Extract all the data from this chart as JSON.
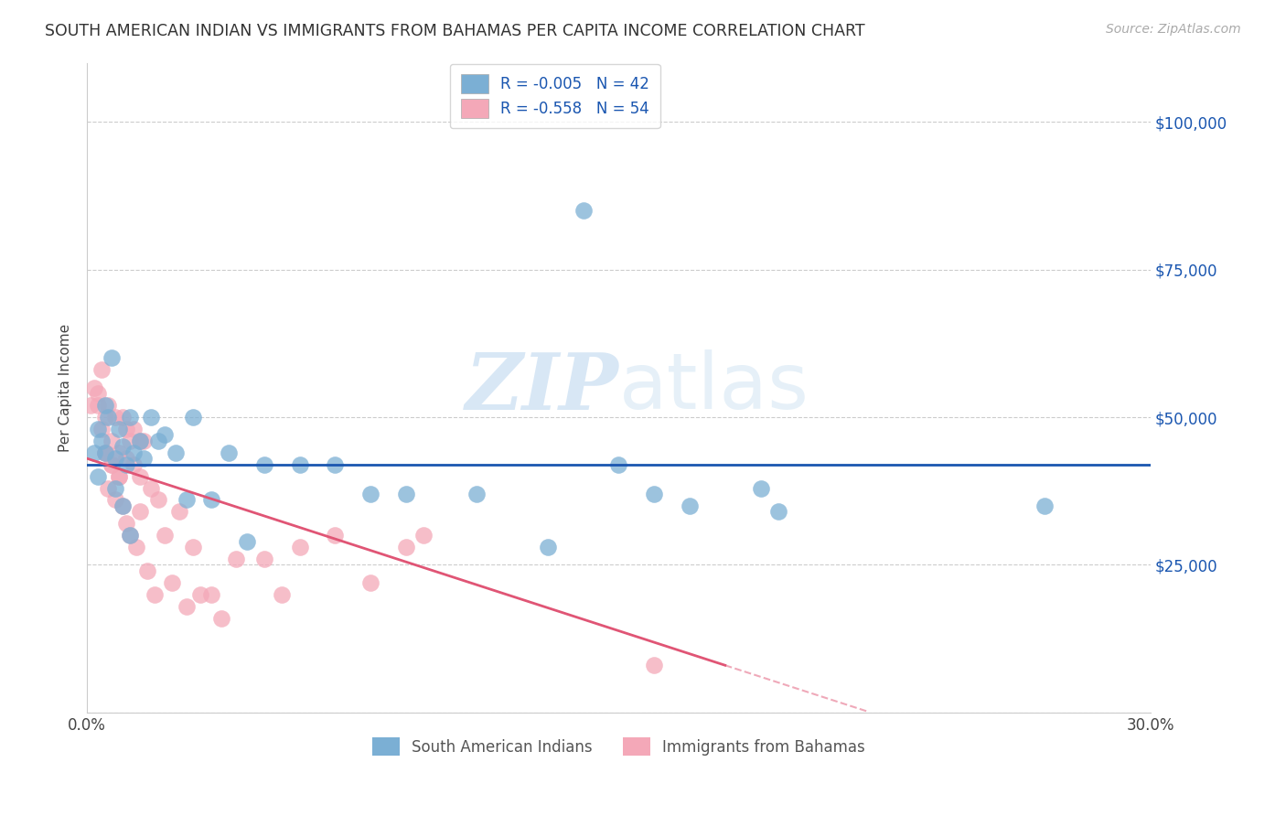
{
  "title": "SOUTH AMERICAN INDIAN VS IMMIGRANTS FROM BAHAMAS PER CAPITA INCOME CORRELATION CHART",
  "source": "Source: ZipAtlas.com",
  "ylabel": "Per Capita Income",
  "xlim": [
    0.0,
    0.3
  ],
  "ylim": [
    0,
    110000
  ],
  "yticks": [
    0,
    25000,
    50000,
    75000,
    100000
  ],
  "ytick_labels": [
    "",
    "$25,000",
    "$50,000",
    "$75,000",
    "$100,000"
  ],
  "xticks": [
    0.0,
    0.05,
    0.1,
    0.15,
    0.2,
    0.25,
    0.3
  ],
  "xtick_labels": [
    "0.0%",
    "",
    "",
    "",
    "",
    "",
    "30.0%"
  ],
  "legend1_label": "R = -0.005   N = 42",
  "legend2_label": "R = -0.558   N = 54",
  "legend_label1": "South American Indians",
  "legend_label2": "Immigrants from Bahamas",
  "blue_color": "#7bafd4",
  "pink_color": "#f4a8b8",
  "blue_line_color": "#1a56b0",
  "pink_line_color": "#e05575",
  "watermark_zip": "ZIP",
  "watermark_atlas": "atlas",
  "title_fontsize": 13,
  "blue_line_y": 42000,
  "pink_line_x0": 0.0,
  "pink_line_y0": 43000,
  "pink_line_x1": 0.18,
  "pink_line_y1": 8000,
  "blue_scatter_x": [
    0.002,
    0.003,
    0.004,
    0.005,
    0.005,
    0.006,
    0.007,
    0.008,
    0.009,
    0.01,
    0.011,
    0.012,
    0.013,
    0.015,
    0.016,
    0.018,
    0.02,
    0.022,
    0.025,
    0.028,
    0.03,
    0.035,
    0.04,
    0.045,
    0.05,
    0.06,
    0.07,
    0.08,
    0.09,
    0.11,
    0.13,
    0.15,
    0.16,
    0.17,
    0.195,
    0.27,
    0.003,
    0.008,
    0.01,
    0.012,
    0.14,
    0.19
  ],
  "blue_scatter_y": [
    44000,
    48000,
    46000,
    52000,
    44000,
    50000,
    60000,
    43000,
    48000,
    45000,
    42000,
    50000,
    44000,
    46000,
    43000,
    50000,
    46000,
    47000,
    44000,
    36000,
    50000,
    36000,
    44000,
    29000,
    42000,
    42000,
    42000,
    37000,
    37000,
    37000,
    28000,
    42000,
    37000,
    35000,
    34000,
    35000,
    40000,
    38000,
    35000,
    30000,
    85000,
    38000
  ],
  "pink_scatter_x": [
    0.001,
    0.002,
    0.003,
    0.004,
    0.004,
    0.005,
    0.005,
    0.006,
    0.006,
    0.007,
    0.007,
    0.008,
    0.008,
    0.009,
    0.009,
    0.01,
    0.01,
    0.011,
    0.011,
    0.012,
    0.012,
    0.013,
    0.014,
    0.015,
    0.015,
    0.016,
    0.017,
    0.018,
    0.019,
    0.02,
    0.022,
    0.024,
    0.026,
    0.028,
    0.03,
    0.032,
    0.035,
    0.038,
    0.042,
    0.05,
    0.055,
    0.06,
    0.07,
    0.08,
    0.09,
    0.095,
    0.003,
    0.005,
    0.007,
    0.009,
    0.011,
    0.013,
    0.015,
    0.16
  ],
  "pink_scatter_y": [
    52000,
    55000,
    52000,
    48000,
    58000,
    50000,
    44000,
    52000,
    38000,
    46000,
    42000,
    50000,
    36000,
    44000,
    40000,
    50000,
    35000,
    43000,
    32000,
    46000,
    30000,
    42000,
    28000,
    40000,
    34000,
    46000,
    24000,
    38000,
    20000,
    36000,
    30000,
    22000,
    34000,
    18000,
    28000,
    20000,
    20000,
    16000,
    26000,
    26000,
    20000,
    28000,
    30000,
    22000,
    28000,
    30000,
    54000,
    44000,
    42000,
    40000,
    48000,
    48000,
    46000,
    8000
  ]
}
